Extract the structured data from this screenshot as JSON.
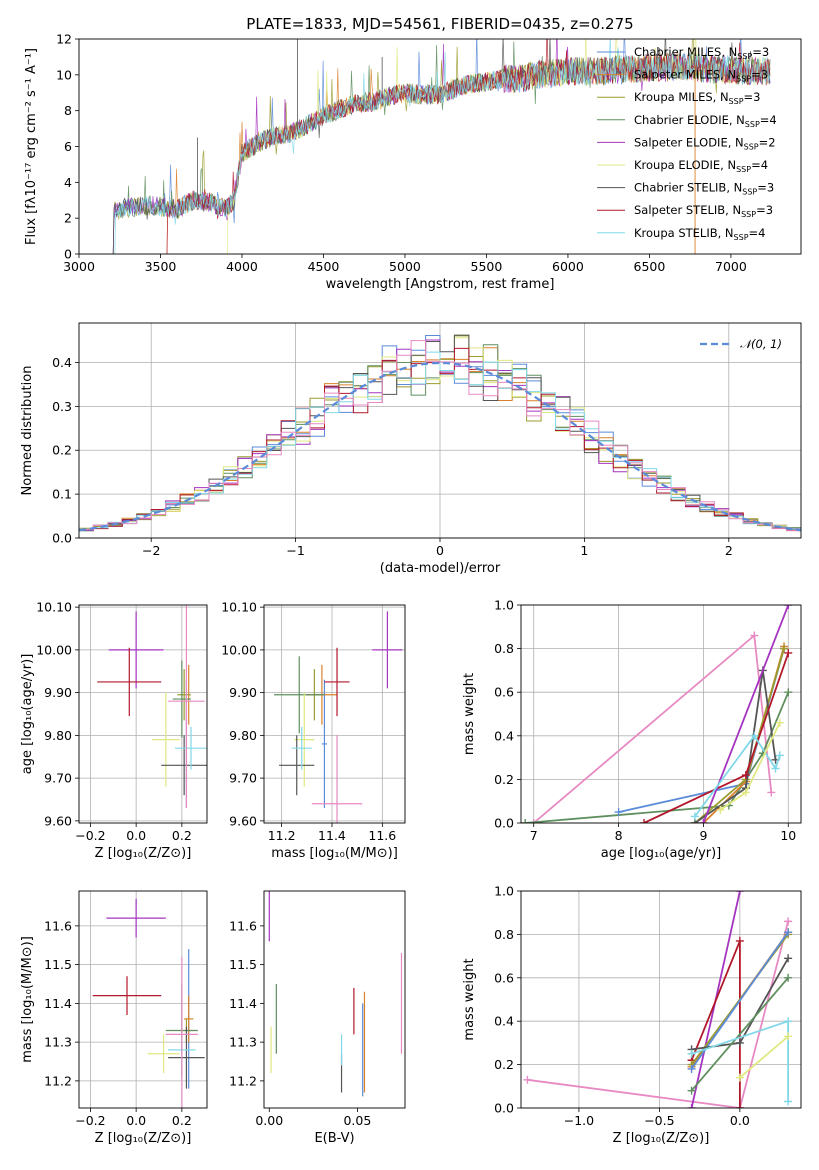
{
  "figure_title": "PLATE=1833, MJD=54561, FIBERID=0435, z=0.275",
  "series_colors": [
    "#5b8bd9",
    "#d9822b",
    "#9b9b2e",
    "#5f8f5f",
    "#a535c0",
    "#e0e880",
    "#555555",
    "#b2182b",
    "#80d8e8",
    "#e78ac3"
  ],
  "chart_data": [
    {
      "id": "spectrum",
      "type": "line",
      "xlabel": "wavelength [Angstrom, rest frame]",
      "ylabel": "Flux [fλ10⁻¹⁷ erg cm⁻² s⁻¹ A⁻¹]",
      "xlim": [
        3000,
        7430
      ],
      "ylim": [
        0,
        12
      ],
      "xticks": [
        3000,
        3500,
        4000,
        4500,
        5000,
        5500,
        6000,
        6500,
        7000
      ],
      "yticks": [
        0,
        2,
        4,
        6,
        8,
        10,
        12
      ],
      "grid": false,
      "legend_position": "right",
      "legend": [
        {
          "label": "Chabrier MILES, N",
          "sub": "SSP",
          "tail": "=3",
          "color": "#5b8bd9"
        },
        {
          "label": "Salpeter MILES, N",
          "sub": "SSP",
          "tail": "=3",
          "color": "#d9822b"
        },
        {
          "label": "Kroupa MILES, N",
          "sub": "SSP",
          "tail": "=3",
          "color": "#9b9b2e"
        },
        {
          "label": "Chabrier ELODIE, N",
          "sub": "SSP",
          "tail": "=4",
          "color": "#5f8f5f"
        },
        {
          "label": "Salpeter ELODIE, N",
          "sub": "SSP",
          "tail": "=2",
          "color": "#a535c0"
        },
        {
          "label": "Kroupa ELODIE, N",
          "sub": "SSP",
          "tail": "=4",
          "color": "#e0e880"
        },
        {
          "label": "Chabrier STELIB, N",
          "sub": "SSP",
          "tail": "=3",
          "color": "#555555"
        },
        {
          "label": "Salpeter STELIB, N",
          "sub": "SSP",
          "tail": "=3",
          "color": "#b2182b"
        },
        {
          "label": "Kroupa STELIB, N",
          "sub": "SSP",
          "tail": "=4",
          "color": "#80d8e8"
        }
      ],
      "continuum": [
        [
          3210,
          2.4
        ],
        [
          3300,
          2.6
        ],
        [
          3450,
          2.7
        ],
        [
          3600,
          2.5
        ],
        [
          3700,
          3.0
        ],
        [
          3800,
          2.9
        ],
        [
          3900,
          2.5
        ],
        [
          3950,
          3.0
        ],
        [
          4000,
          5.6
        ],
        [
          4100,
          6.2
        ],
        [
          4200,
          6.6
        ],
        [
          4300,
          6.7
        ],
        [
          4400,
          7.2
        ],
        [
          4500,
          7.7
        ],
        [
          4600,
          8.1
        ],
        [
          4700,
          8.4
        ],
        [
          4800,
          8.5
        ],
        [
          4900,
          8.8
        ],
        [
          5000,
          9.0
        ],
        [
          5100,
          8.9
        ],
        [
          5200,
          8.9
        ],
        [
          5300,
          9.2
        ],
        [
          5400,
          9.5
        ],
        [
          5500,
          9.6
        ],
        [
          5600,
          9.8
        ],
        [
          5700,
          9.8
        ],
        [
          5800,
          10.0
        ],
        [
          5900,
          10.1
        ],
        [
          6000,
          10.2
        ],
        [
          6100,
          10.2
        ],
        [
          6200,
          10.2
        ],
        [
          6300,
          10.3
        ],
        [
          6400,
          10.3
        ],
        [
          6500,
          10.4
        ],
        [
          6600,
          10.4
        ],
        [
          6700,
          10.5
        ],
        [
          6800,
          10.4
        ],
        [
          6900,
          10.3
        ],
        [
          7000,
          10.3
        ],
        [
          7100,
          10.2
        ],
        [
          7240,
          10.2
        ]
      ]
    },
    {
      "id": "residuals",
      "type": "histogram",
      "xlabel": "(data-model)/error",
      "ylabel": "Normed distribution",
      "xlim": [
        -2.5,
        2.5
      ],
      "ylim": [
        0,
        0.49
      ],
      "xticks": [
        -2,
        -1,
        0,
        1,
        2
      ],
      "yticks": [
        0.0,
        0.1,
        0.2,
        0.3,
        0.4
      ],
      "grid": true,
      "legend_position": "top-right",
      "legend": [
        {
          "label": "𝒩(0, 1)",
          "color": "#5b8bd9"
        }
      ],
      "bin_width": 0.1
    },
    {
      "id": "age-vs-Z",
      "type": "scatter",
      "xlabel": "Z [log₁₀(Z/Z⊙)]",
      "ylabel": "age  [log₁₀(age/yr)]",
      "xlim": [
        -0.25,
        0.31
      ],
      "ylim": [
        9.595,
        10.105
      ],
      "xticks": [
        -0.2,
        0.0,
        0.2
      ],
      "yticks": [
        9.6,
        9.7,
        9.8,
        9.9,
        10.0,
        10.1
      ],
      "grid": true,
      "points": [
        {
          "x": 0.22,
          "y": 9.78,
          "xerr": 0.0,
          "yerr": 0.15,
          "color": "#5b8bd9"
        },
        {
          "x": 0.23,
          "y": 9.895,
          "xerr": 0.0,
          "yerr": 0.07,
          "color": "#d9822b"
        },
        {
          "x": 0.21,
          "y": 9.895,
          "xerr": 0.03,
          "yerr": 0.06,
          "color": "#9b9b2e"
        },
        {
          "x": 0.2,
          "y": 9.885,
          "xerr": 0.04,
          "yerr": 0.09,
          "color": "#5f8f5f"
        },
        {
          "x": 0.0,
          "y": 10.0,
          "xerr": 0.12,
          "yerr": 0.09,
          "color": "#a535c0"
        },
        {
          "x": 0.13,
          "y": 9.79,
          "xerr": 0.06,
          "yerr": 0.11,
          "color": "#e0e880"
        },
        {
          "x": 0.21,
          "y": 9.73,
          "xerr": 0.1,
          "yerr": 0.07,
          "color": "#555555"
        },
        {
          "x": -0.03,
          "y": 9.925,
          "xerr": 0.14,
          "yerr": 0.08,
          "color": "#b2182b"
        },
        {
          "x": 0.24,
          "y": 9.77,
          "xerr": 0.07,
          "yerr": 0.05,
          "color": "#80d8e8"
        },
        {
          "x": 0.22,
          "y": 9.88,
          "xerr": 0.08,
          "yerr": 0.25,
          "color": "#e78ac3"
        }
      ]
    },
    {
      "id": "age-vs-mass",
      "type": "scatter",
      "xlabel": "mass [log₁₀(M/M⊙)]",
      "ylabel": "",
      "xlim": [
        11.13,
        11.69
      ],
      "ylim": [
        9.595,
        10.105
      ],
      "xticks": [
        11.2,
        11.4,
        11.6
      ],
      "yticks": [
        9.6,
        9.7,
        9.8,
        9.9,
        10.0,
        10.1
      ],
      "grid": true,
      "points": [
        {
          "x": 11.37,
          "y": 9.78,
          "xerr": 0.01,
          "yerr": 0.15,
          "color": "#5b8bd9"
        },
        {
          "x": 11.36,
          "y": 9.895,
          "xerr": 0.06,
          "yerr": 0.07,
          "color": "#d9822b"
        },
        {
          "x": 11.33,
          "y": 9.895,
          "xerr": 0.03,
          "yerr": 0.06,
          "color": "#9b9b2e"
        },
        {
          "x": 11.27,
          "y": 9.895,
          "xerr": 0.1,
          "yerr": 0.09,
          "color": "#5f8f5f"
        },
        {
          "x": 11.62,
          "y": 10.0,
          "xerr": 0.06,
          "yerr": 0.09,
          "color": "#a535c0"
        },
        {
          "x": 11.29,
          "y": 9.79,
          "xerr": 0.04,
          "yerr": 0.11,
          "color": "#e0e880"
        },
        {
          "x": 11.26,
          "y": 9.73,
          "xerr": 0.07,
          "yerr": 0.07,
          "color": "#555555"
        },
        {
          "x": 11.42,
          "y": 9.925,
          "xerr": 0.05,
          "yerr": 0.08,
          "color": "#b2182b"
        },
        {
          "x": 11.28,
          "y": 9.77,
          "xerr": 0.04,
          "yerr": 0.05,
          "color": "#80d8e8"
        },
        {
          "x": 11.42,
          "y": 9.64,
          "xerr": 0.1,
          "yerr": 0.16,
          "color": "#e78ac3"
        }
      ]
    },
    {
      "id": "mass-weight-vs-age",
      "type": "line",
      "xlabel": "age  [log₁₀(age/yr)]",
      "ylabel": "mass weight",
      "xlim": [
        6.85,
        10.15
      ],
      "ylim": [
        0,
        1
      ],
      "xticks": [
        7,
        8,
        9,
        10
      ],
      "yticks": [
        0.0,
        0.2,
        0.4,
        0.6,
        0.8,
        1.0
      ],
      "grid": true,
      "series": [
        {
          "color": "#e78ac3",
          "points": [
            [
              7.0,
              0.0
            ],
            [
              9.6,
              0.86
            ],
            [
              9.8,
              0.14
            ]
          ]
        },
        {
          "color": "#5f8f5f",
          "points": [
            [
              6.9,
              0.0
            ],
            [
              9.3,
              0.08
            ],
            [
              9.7,
              0.32
            ],
            [
              10.0,
              0.6
            ]
          ]
        },
        {
          "color": "#5b8bd9",
          "points": [
            [
              8.0,
              0.05
            ],
            [
              9.5,
              0.18
            ],
            [
              9.95,
              0.8
            ]
          ]
        },
        {
          "color": "#d9822b",
          "points": [
            [
              9.0,
              0.0
            ],
            [
              9.5,
              0.19
            ],
            [
              9.95,
              0.81
            ]
          ]
        },
        {
          "color": "#9b9b2e",
          "points": [
            [
              8.9,
              0.0
            ],
            [
              9.5,
              0.2
            ],
            [
              9.95,
              0.8
            ]
          ]
        },
        {
          "color": "#555555",
          "points": [
            [
              8.9,
              0.0
            ],
            [
              9.5,
              0.16
            ],
            [
              9.7,
              0.7
            ],
            [
              9.85,
              0.29
            ]
          ]
        },
        {
          "color": "#b2182b",
          "points": [
            [
              8.3,
              0.0
            ],
            [
              9.5,
              0.22
            ],
            [
              10.0,
              0.78
            ]
          ]
        },
        {
          "color": "#a535c0",
          "points": [
            [
              9.0,
              0.0
            ],
            [
              10.0,
              1.0
            ]
          ]
        },
        {
          "color": "#80d8e8",
          "points": [
            [
              8.9,
              0.03
            ],
            [
              9.6,
              0.4
            ],
            [
              9.85,
              0.25
            ],
            [
              9.9,
              0.31
            ]
          ]
        },
        {
          "color": "#e0e880",
          "points": [
            [
              9.2,
              0.06
            ],
            [
              9.5,
              0.14
            ],
            [
              9.9,
              0.46
            ]
          ]
        }
      ]
    },
    {
      "id": "mass-vs-Z",
      "type": "scatter",
      "xlabel": "Z [log₁₀(Z/Z⊙)]",
      "ylabel": "mass [log₁₀(M/M⊙)]",
      "xlim": [
        -0.25,
        0.31
      ],
      "ylim": [
        11.13,
        11.69
      ],
      "xticks": [
        -0.2,
        0.0,
        0.2
      ],
      "yticks": [
        11.2,
        11.3,
        11.4,
        11.5,
        11.6
      ],
      "grid": true,
      "points": [
        {
          "x": 0.23,
          "y": 11.36,
          "xerr": 0.0,
          "yerr": 0.18,
          "color": "#5b8bd9"
        },
        {
          "x": 0.23,
          "y": 11.36,
          "xerr": 0.02,
          "yerr": 0.06,
          "color": "#d9822b"
        },
        {
          "x": 0.22,
          "y": 11.33,
          "xerr": 0.03,
          "yerr": 0.03,
          "color": "#9b9b2e"
        },
        {
          "x": 0.2,
          "y": 11.33,
          "xerr": 0.07,
          "yerr": 0.12,
          "color": "#5f8f5f"
        },
        {
          "x": 0.0,
          "y": 11.62,
          "xerr": 0.13,
          "yerr": 0.05,
          "color": "#a535c0"
        },
        {
          "x": 0.12,
          "y": 11.27,
          "xerr": 0.07,
          "yerr": 0.05,
          "color": "#e0e880"
        },
        {
          "x": 0.22,
          "y": 11.26,
          "xerr": 0.08,
          "yerr": 0.08,
          "color": "#555555"
        },
        {
          "x": -0.04,
          "y": 11.42,
          "xerr": 0.15,
          "yerr": 0.05,
          "color": "#b2182b"
        },
        {
          "x": 0.2,
          "y": 11.28,
          "xerr": 0.06,
          "yerr": 0.04,
          "color": "#80d8e8"
        },
        {
          "x": 0.2,
          "y": 11.32,
          "xerr": 0.07,
          "yerr": 0.2,
          "color": "#e78ac3"
        }
      ]
    },
    {
      "id": "mass-vs-EBV",
      "type": "scatter",
      "xlabel": "E(B-V)",
      "ylabel": "",
      "xlim": [
        -0.003,
        0.077
      ],
      "ylim": [
        11.13,
        11.69
      ],
      "xticks": [
        0.0,
        0.05
      ],
      "yticks": [
        11.2,
        11.3,
        11.4,
        11.5,
        11.6
      ],
      "grid": false,
      "points": [
        {
          "x": 0.053,
          "y": 11.28,
          "xerr": 0.0,
          "yerr": 0.12,
          "color": "#5b8bd9"
        },
        {
          "x": 0.054,
          "y": 11.3,
          "xerr": 0.0,
          "yerr": 0.13,
          "color": "#d9822b"
        },
        {
          "x": 0.004,
          "y": 11.36,
          "xerr": 0.0,
          "yerr": 0.09,
          "color": "#5f8f5f"
        },
        {
          "x": 0.0,
          "y": 11.63,
          "xerr": 0.0,
          "yerr": 0.07,
          "color": "#a535c0"
        },
        {
          "x": 0.001,
          "y": 11.28,
          "xerr": 0.0,
          "yerr": 0.06,
          "color": "#e0e880"
        },
        {
          "x": 0.041,
          "y": 11.22,
          "xerr": 0.0,
          "yerr": 0.05,
          "color": "#555555"
        },
        {
          "x": 0.048,
          "y": 11.38,
          "xerr": 0.0,
          "yerr": 0.06,
          "color": "#b2182b"
        },
        {
          "x": 0.041,
          "y": 11.28,
          "xerr": 0.0,
          "yerr": 0.04,
          "color": "#80d8e8"
        },
        {
          "x": 0.075,
          "y": 11.4,
          "xerr": 0.0,
          "yerr": 0.13,
          "color": "#e78ac3"
        }
      ]
    },
    {
      "id": "mass-weight-vs-Z",
      "type": "line",
      "xlabel": "Z [log₁₀(Z/Z⊙)]",
      "ylabel": "mass weight",
      "xlim": [
        -1.36,
        0.38
      ],
      "ylim": [
        0,
        1
      ],
      "xticks": [
        -1.0,
        -0.5,
        0.0
      ],
      "yticks": [
        0.0,
        0.2,
        0.4,
        0.6,
        0.8,
        1.0
      ],
      "grid": true,
      "series": [
        {
          "color": "#e78ac3",
          "points": [
            [
              -1.32,
              0.13
            ],
            [
              0.0,
              0.0
            ],
            [
              0.3,
              0.86
            ]
          ]
        },
        {
          "color": "#a535c0",
          "points": [
            [
              -0.3,
              0.0
            ],
            [
              0.0,
              1.0
            ]
          ]
        },
        {
          "color": "#b2182b",
          "points": [
            [
              -0.3,
              0.22
            ],
            [
              0.0,
              0.77
            ],
            [
              0.0,
              0.0
            ]
          ]
        },
        {
          "color": "#d9822b",
          "points": [
            [
              -0.3,
              0.19
            ],
            [
              0.3,
              0.81
            ]
          ]
        },
        {
          "color": "#9b9b2e",
          "points": [
            [
              -0.3,
              0.2
            ],
            [
              0.3,
              0.8
            ]
          ]
        },
        {
          "color": "#5b8bd9",
          "points": [
            [
              -0.3,
              0.18
            ],
            [
              0.3,
              0.81
            ]
          ]
        },
        {
          "color": "#555555",
          "points": [
            [
              -0.3,
              0.27
            ],
            [
              0.0,
              0.3
            ],
            [
              0.3,
              0.69
            ]
          ]
        },
        {
          "color": "#5f8f5f",
          "points": [
            [
              -0.3,
              0.08
            ],
            [
              0.3,
              0.6
            ]
          ]
        },
        {
          "color": "#80d8e8",
          "points": [
            [
              -0.3,
              0.25
            ],
            [
              0.3,
              0.4
            ],
            [
              0.3,
              0.03
            ]
          ]
        },
        {
          "color": "#e0e880",
          "points": [
            [
              0.0,
              0.14
            ],
            [
              0.3,
              0.33
            ]
          ]
        }
      ]
    }
  ]
}
